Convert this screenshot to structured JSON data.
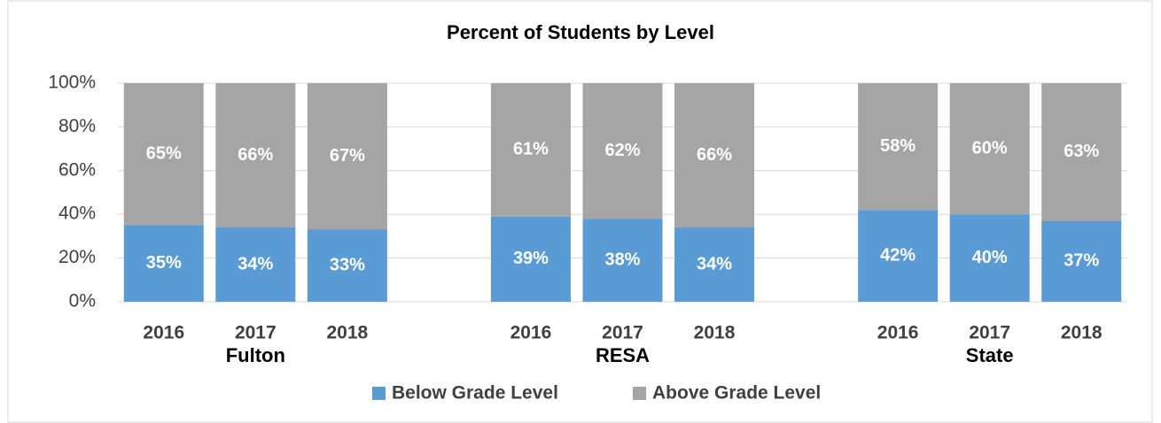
{
  "chart_data": {
    "type": "stacked_bar",
    "title": "Percent of Students by Level",
    "categories": [
      "2016",
      "2017",
      "2018",
      null,
      "2016",
      "2017",
      "2018",
      null,
      "2016",
      "2017",
      "2018"
    ],
    "groups": [
      "Fulton",
      "RESA",
      "State"
    ],
    "series": [
      {
        "name": "Below Grade Level",
        "color": "#5b9bd5",
        "values": [
          35,
          34,
          33,
          null,
          39,
          38,
          34,
          null,
          42,
          40,
          37
        ],
        "value_labels": [
          "35%",
          "34%",
          "33%",
          null,
          "39%",
          "38%",
          "34%",
          null,
          "42%",
          "40%",
          "37%"
        ]
      },
      {
        "name": "Above Grade Level",
        "color": "#a5a5a5",
        "values": [
          65,
          66,
          67,
          null,
          61,
          62,
          66,
          null,
          58,
          60,
          63
        ],
        "value_labels": [
          "65%",
          "66%",
          "67%",
          null,
          "61%",
          "62%",
          "66%",
          null,
          "58%",
          "60%",
          "63%"
        ]
      }
    ],
    "ylim": [
      0,
      100
    ],
    "yticks": [
      {
        "value": 0,
        "label": "0%"
      },
      {
        "value": 20,
        "label": "20%"
      },
      {
        "value": 40,
        "label": "40%"
      },
      {
        "value": 60,
        "label": "60%"
      },
      {
        "value": 80,
        "label": "80%"
      },
      {
        "value": 100,
        "label": "100%"
      }
    ],
    "grid": true,
    "legend": "bottom"
  }
}
